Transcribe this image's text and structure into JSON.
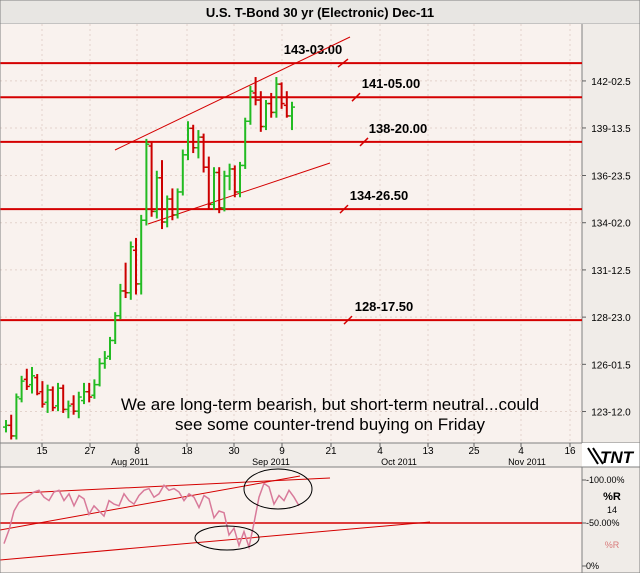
{
  "chart_data": [
    {
      "type": "ohlc",
      "title": "U.S. T-Bond 30 yr (Electronic) Dec-11",
      "y_ticks": [
        {
          "label": "142-02.5",
          "value": 142.08
        },
        {
          "label": "139-13.5",
          "value": 139.42
        },
        {
          "label": "136-23.5",
          "value": 136.73
        },
        {
          "label": "134-02.0",
          "value": 134.06
        },
        {
          "label": "131-12.5",
          "value": 131.39
        },
        {
          "label": "128-23.0",
          "value": 128.72
        },
        {
          "label": "126-01.5",
          "value": 126.05
        },
        {
          "label": "123-12.0",
          "value": 123.38
        }
      ],
      "ylim": [
        121.6,
        145.3
      ],
      "x_ticks": [
        "15",
        "27",
        "8",
        "18",
        "30",
        "9",
        "21",
        "4",
        "13",
        "25",
        "4",
        "16"
      ],
      "month_labels": [
        "Aug 2011",
        "Sep 2011",
        "Oct 2011",
        "Nov 2011"
      ],
      "levels": [
        {
          "label": "143-03.00",
          "value": 143.09
        },
        {
          "label": "141-05.00",
          "value": 141.16
        },
        {
          "label": "138-20.00",
          "value": 138.63
        },
        {
          "label": "134-26.50",
          "value": 134.83
        },
        {
          "label": "128-17.50",
          "value": 128.55
        }
      ],
      "annotation": [
        "We are long-term bearish, but short-term neutral...could",
        "see some counter-trend buying on Friday"
      ],
      "bars": [
        {
          "o": 122.5,
          "h": 122.9,
          "l": 122.2,
          "c": 122.6,
          "d": "up"
        },
        {
          "o": 122.6,
          "h": 123.2,
          "l": 121.8,
          "c": 122.0,
          "d": "dn"
        },
        {
          "o": 122.0,
          "h": 124.4,
          "l": 121.8,
          "c": 124.2,
          "d": "up"
        },
        {
          "o": 124.1,
          "h": 125.4,
          "l": 123.9,
          "c": 125.1,
          "d": "up"
        },
        {
          "o": 125.2,
          "h": 125.8,
          "l": 124.6,
          "c": 124.8,
          "d": "dn"
        },
        {
          "o": 124.9,
          "h": 125.9,
          "l": 124.4,
          "c": 125.4,
          "d": "up"
        },
        {
          "o": 125.3,
          "h": 125.5,
          "l": 124.3,
          "c": 124.4,
          "d": "dn"
        },
        {
          "o": 124.5,
          "h": 125.1,
          "l": 123.6,
          "c": 123.8,
          "d": "dn"
        },
        {
          "o": 123.9,
          "h": 124.9,
          "l": 123.3,
          "c": 124.6,
          "d": "up"
        },
        {
          "o": 124.6,
          "h": 124.8,
          "l": 123.4,
          "c": 123.6,
          "d": "dn"
        },
        {
          "o": 123.7,
          "h": 125.0,
          "l": 123.4,
          "c": 124.7,
          "d": "up"
        },
        {
          "o": 124.7,
          "h": 124.9,
          "l": 123.3,
          "c": 123.5,
          "d": "dn"
        },
        {
          "o": 123.5,
          "h": 124.0,
          "l": 123.0,
          "c": 123.7,
          "d": "up"
        },
        {
          "o": 123.8,
          "h": 124.3,
          "l": 123.2,
          "c": 123.4,
          "d": "dn"
        },
        {
          "o": 123.4,
          "h": 124.5,
          "l": 123.0,
          "c": 124.2,
          "d": "up"
        },
        {
          "o": 124.0,
          "h": 125.0,
          "l": 123.8,
          "c": 124.5,
          "d": "up"
        },
        {
          "o": 124.5,
          "h": 125.0,
          "l": 123.9,
          "c": 124.2,
          "d": "dn"
        },
        {
          "o": 124.3,
          "h": 125.2,
          "l": 124.1,
          "c": 124.9,
          "d": "up"
        },
        {
          "o": 124.9,
          "h": 126.4,
          "l": 124.8,
          "c": 126.1,
          "d": "up"
        },
        {
          "o": 126.1,
          "h": 126.8,
          "l": 125.8,
          "c": 126.4,
          "d": "up"
        },
        {
          "o": 126.5,
          "h": 127.6,
          "l": 126.3,
          "c": 127.4,
          "d": "up"
        },
        {
          "o": 127.4,
          "h": 129.0,
          "l": 127.2,
          "c": 128.8,
          "d": "up"
        },
        {
          "o": 128.8,
          "h": 130.6,
          "l": 128.6,
          "c": 130.2,
          "d": "up"
        },
        {
          "o": 130.2,
          "h": 131.8,
          "l": 129.8,
          "c": 130.1,
          "d": "dn"
        },
        {
          "o": 130.1,
          "h": 133.0,
          "l": 129.7,
          "c": 132.7,
          "d": "up"
        },
        {
          "o": 132.5,
          "h": 133.2,
          "l": 130.0,
          "c": 130.6,
          "d": "dn"
        },
        {
          "o": 130.6,
          "h": 134.5,
          "l": 130.0,
          "c": 134.2,
          "d": "up"
        },
        {
          "o": 134.2,
          "h": 138.8,
          "l": 133.9,
          "c": 138.5,
          "d": "up"
        },
        {
          "o": 138.4,
          "h": 138.6,
          "l": 134.4,
          "c": 134.7,
          "d": "dn"
        },
        {
          "o": 134.7,
          "h": 137.0,
          "l": 134.3,
          "c": 136.6,
          "d": "up"
        },
        {
          "o": 136.6,
          "h": 137.6,
          "l": 133.7,
          "c": 134.1,
          "d": "dn"
        },
        {
          "o": 134.1,
          "h": 135.6,
          "l": 133.8,
          "c": 135.4,
          "d": "up"
        },
        {
          "o": 135.4,
          "h": 136.0,
          "l": 134.2,
          "c": 134.5,
          "d": "dn"
        },
        {
          "o": 134.5,
          "h": 136.0,
          "l": 134.3,
          "c": 135.8,
          "d": "up"
        },
        {
          "o": 135.8,
          "h": 138.2,
          "l": 135.6,
          "c": 137.9,
          "d": "up"
        },
        {
          "o": 137.9,
          "h": 139.8,
          "l": 137.6,
          "c": 139.4,
          "d": "up"
        },
        {
          "o": 139.4,
          "h": 139.6,
          "l": 138.0,
          "c": 138.3,
          "d": "dn"
        },
        {
          "o": 138.3,
          "h": 139.3,
          "l": 137.7,
          "c": 138.9,
          "d": "up"
        },
        {
          "o": 138.9,
          "h": 139.1,
          "l": 136.9,
          "c": 137.2,
          "d": "dn"
        },
        {
          "o": 137.2,
          "h": 137.8,
          "l": 134.8,
          "c": 135.1,
          "d": "dn"
        },
        {
          "o": 135.1,
          "h": 137.2,
          "l": 134.8,
          "c": 136.9,
          "d": "up"
        },
        {
          "o": 136.9,
          "h": 137.2,
          "l": 134.6,
          "c": 134.9,
          "d": "dn"
        },
        {
          "o": 134.9,
          "h": 137.0,
          "l": 134.7,
          "c": 136.7,
          "d": "up"
        },
        {
          "o": 136.7,
          "h": 137.4,
          "l": 135.9,
          "c": 137.1,
          "d": "up"
        },
        {
          "o": 137.1,
          "h": 137.3,
          "l": 135.5,
          "c": 135.8,
          "d": "dn"
        },
        {
          "o": 135.8,
          "h": 137.5,
          "l": 135.5,
          "c": 137.3,
          "d": "up"
        },
        {
          "o": 137.3,
          "h": 140.0,
          "l": 137.1,
          "c": 139.8,
          "d": "up"
        },
        {
          "o": 139.8,
          "h": 141.8,
          "l": 139.6,
          "c": 141.5,
          "d": "up"
        },
        {
          "o": 141.4,
          "h": 142.3,
          "l": 140.7,
          "c": 141.0,
          "d": "dn"
        },
        {
          "o": 141.0,
          "h": 141.5,
          "l": 139.2,
          "c": 139.5,
          "d": "dn"
        },
        {
          "o": 139.5,
          "h": 141.0,
          "l": 139.3,
          "c": 140.8,
          "d": "up"
        },
        {
          "o": 140.8,
          "h": 141.4,
          "l": 140.0,
          "c": 140.3,
          "d": "dn"
        },
        {
          "o": 140.3,
          "h": 142.3,
          "l": 140.0,
          "c": 141.9,
          "d": "up"
        },
        {
          "o": 141.9,
          "h": 142.0,
          "l": 140.5,
          "c": 140.8,
          "d": "dn"
        },
        {
          "o": 140.7,
          "h": 141.5,
          "l": 140.0,
          "c": 140.1,
          "d": "dn"
        },
        {
          "o": 140.1,
          "h": 140.9,
          "l": 139.3,
          "c": 140.6,
          "d": "up"
        }
      ]
    },
    {
      "type": "line",
      "title": "%R",
      "parameter": "14",
      "y_ticks": [
        "-100.00%",
        "-50.00%",
        "0%"
      ],
      "ylim": [
        -100,
        0
      ],
      "series": [
        {
          "name": "%R",
          "values": [
            -74,
            -58,
            -36,
            -26,
            -22,
            -18,
            -14,
            -12,
            -20,
            -24,
            -14,
            -12,
            -24,
            -16,
            -30,
            -18,
            -22,
            -40,
            -30,
            -36,
            -42,
            -24,
            -28,
            -30,
            -16,
            -24,
            -28,
            -18,
            -12,
            -10,
            -20,
            -16,
            -6,
            -12,
            -10,
            -14,
            -24,
            -16,
            -20,
            -32,
            -18,
            -22,
            -44,
            -36,
            -38,
            -64,
            -56,
            -76,
            -60,
            -78,
            -50,
            -20,
            -4,
            -8,
            -28,
            -18,
            -24,
            -12,
            -20,
            -30
          ]
        }
      ]
    }
  ]
}
